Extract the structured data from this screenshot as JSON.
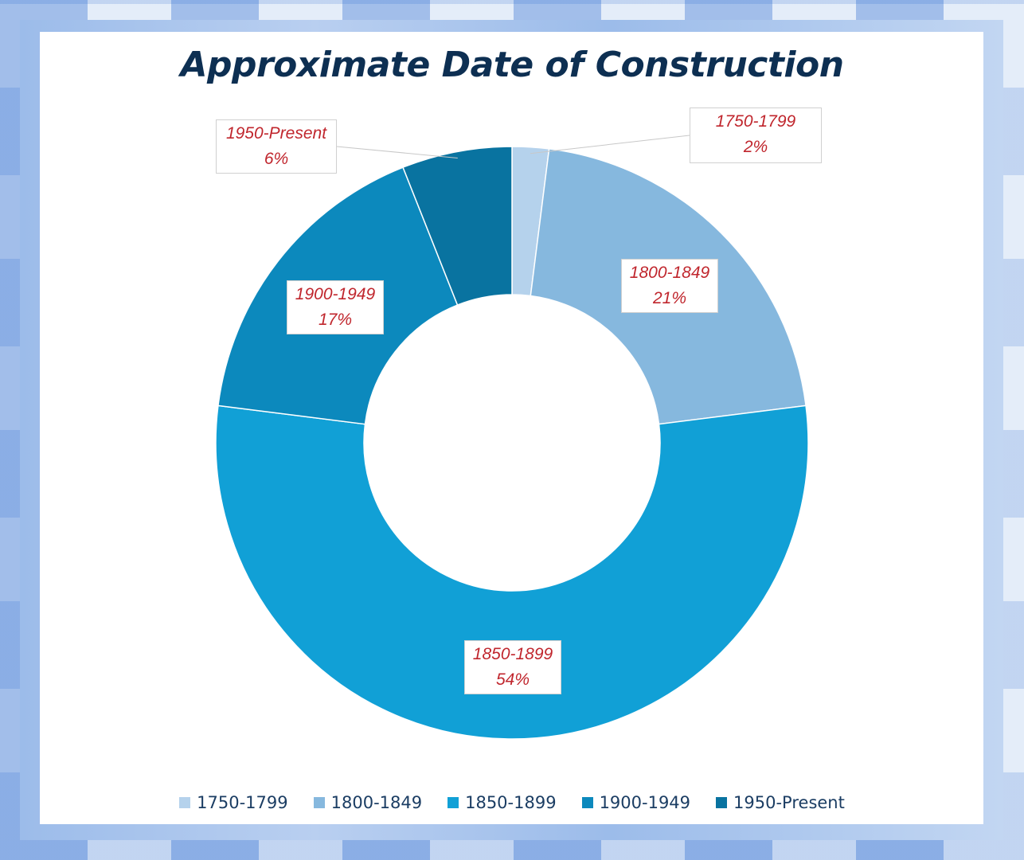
{
  "chart_data": {
    "type": "pie",
    "variant": "donut",
    "title": "Approximate Date of Construction",
    "categories": [
      "1750-1799",
      "1800-1849",
      "1850-1899",
      "1900-1949",
      "1950-Present"
    ],
    "values": [
      2,
      21,
      54,
      17,
      6
    ],
    "value_labels": [
      "2%",
      "21%",
      "54%",
      "17%",
      "6%"
    ],
    "colors": [
      "#b5d2ec",
      "#86b8de",
      "#11a0d6",
      "#0c89bd",
      "#0973a0"
    ],
    "label_color": "#c0262d",
    "title_color": "#0d2f52",
    "legend_position": "bottom"
  }
}
